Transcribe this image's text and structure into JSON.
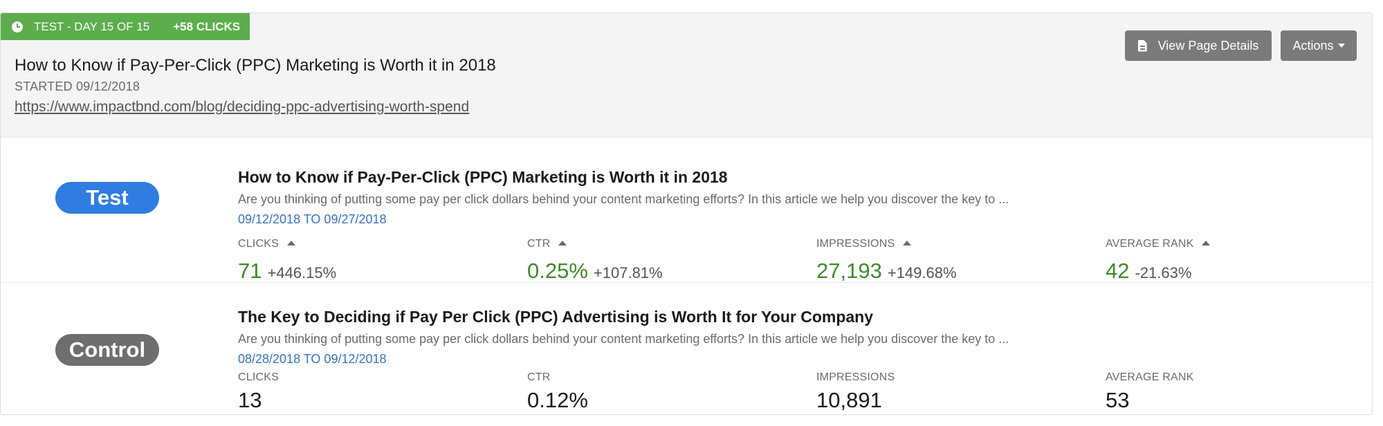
{
  "status": {
    "label": "TEST - DAY 15 OF 15",
    "clicks_delta": "+58 CLICKS",
    "color": "#5cae4c"
  },
  "header": {
    "title": "How to Know if Pay-Per-Click (PPC) Marketing is Worth it in 2018",
    "started": "STARTED 09/12/2018",
    "url": "https://www.impactbnd.com/blog/deciding-ppc-advertising-worth-spend",
    "view_details_label": "View Page Details",
    "view_details_icon": "document-icon",
    "actions_label": "Actions"
  },
  "test": {
    "badge": "Test",
    "badge_color": "#2f7de1",
    "title": "How to Know if Pay-Per-Click (PPC) Marketing is Worth it in 2018",
    "description": "Are you thinking of putting some pay per click dollars behind your content marketing efforts? In this article we help you discover the key to ...",
    "date_range": "09/12/2018 TO 09/27/2018",
    "metrics": [
      {
        "label": "CLICKS",
        "value": "71",
        "change": "+446.15%"
      },
      {
        "label": "CTR",
        "value": "0.25%",
        "change": "+107.81%"
      },
      {
        "label": "IMPRESSIONS",
        "value": "27,193",
        "change": "+149.68%"
      },
      {
        "label": "AVERAGE RANK",
        "value": "42",
        "change": "-21.63%"
      }
    ],
    "value_color": "#3e8a2a"
  },
  "control": {
    "badge": "Control",
    "badge_color": "#6e6e6e",
    "title": "The Key to Deciding if Pay Per Click (PPC) Advertising is Worth It for Your Company",
    "description": "Are you thinking of putting some pay per click dollars behind your content marketing efforts? In this article we help you discover the key to ...",
    "date_range": "08/28/2018 TO 09/12/2018",
    "metrics": [
      {
        "label": "CLICKS",
        "value": "13"
      },
      {
        "label": "CTR",
        "value": "0.12%"
      },
      {
        "label": "IMPRESSIONS",
        "value": "10,891"
      },
      {
        "label": "AVERAGE RANK",
        "value": "53"
      }
    ]
  }
}
